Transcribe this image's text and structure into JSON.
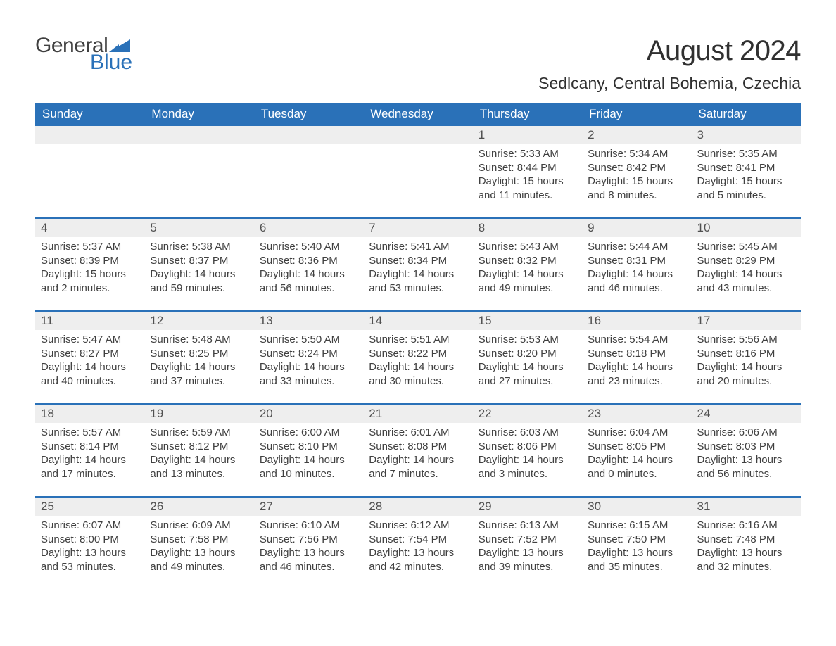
{
  "logo": {
    "text1": "General",
    "text2": "Blue",
    "sail_color": "#2a71b8"
  },
  "title": "August 2024",
  "location": "Sedlcany, Central Bohemia, Czechia",
  "colors": {
    "header_bg": "#2a71b8",
    "header_fg": "#ffffff",
    "daynum_bg": "#eeeeee",
    "week_border": "#2a71b8",
    "text": "#404040",
    "background": "#ffffff"
  },
  "typography": {
    "title_fontsize": 40,
    "location_fontsize": 23,
    "weekday_fontsize": 17,
    "daynum_fontsize": 17,
    "body_fontsize": 15,
    "font_family": "Arial"
  },
  "layout": {
    "columns": 7,
    "rows": 5,
    "first_day_column": 4
  },
  "weekdays": [
    "Sunday",
    "Monday",
    "Tuesday",
    "Wednesday",
    "Thursday",
    "Friday",
    "Saturday"
  ],
  "weeks": [
    [
      {
        "empty": true
      },
      {
        "empty": true
      },
      {
        "empty": true
      },
      {
        "empty": true
      },
      {
        "n": "1",
        "sunrise": "Sunrise: 5:33 AM",
        "sunset": "Sunset: 8:44 PM",
        "daylight": "Daylight: 15 hours and 11 minutes."
      },
      {
        "n": "2",
        "sunrise": "Sunrise: 5:34 AM",
        "sunset": "Sunset: 8:42 PM",
        "daylight": "Daylight: 15 hours and 8 minutes."
      },
      {
        "n": "3",
        "sunrise": "Sunrise: 5:35 AM",
        "sunset": "Sunset: 8:41 PM",
        "daylight": "Daylight: 15 hours and 5 minutes."
      }
    ],
    [
      {
        "n": "4",
        "sunrise": "Sunrise: 5:37 AM",
        "sunset": "Sunset: 8:39 PM",
        "daylight": "Daylight: 15 hours and 2 minutes."
      },
      {
        "n": "5",
        "sunrise": "Sunrise: 5:38 AM",
        "sunset": "Sunset: 8:37 PM",
        "daylight": "Daylight: 14 hours and 59 minutes."
      },
      {
        "n": "6",
        "sunrise": "Sunrise: 5:40 AM",
        "sunset": "Sunset: 8:36 PM",
        "daylight": "Daylight: 14 hours and 56 minutes."
      },
      {
        "n": "7",
        "sunrise": "Sunrise: 5:41 AM",
        "sunset": "Sunset: 8:34 PM",
        "daylight": "Daylight: 14 hours and 53 minutes."
      },
      {
        "n": "8",
        "sunrise": "Sunrise: 5:43 AM",
        "sunset": "Sunset: 8:32 PM",
        "daylight": "Daylight: 14 hours and 49 minutes."
      },
      {
        "n": "9",
        "sunrise": "Sunrise: 5:44 AM",
        "sunset": "Sunset: 8:31 PM",
        "daylight": "Daylight: 14 hours and 46 minutes."
      },
      {
        "n": "10",
        "sunrise": "Sunrise: 5:45 AM",
        "sunset": "Sunset: 8:29 PM",
        "daylight": "Daylight: 14 hours and 43 minutes."
      }
    ],
    [
      {
        "n": "11",
        "sunrise": "Sunrise: 5:47 AM",
        "sunset": "Sunset: 8:27 PM",
        "daylight": "Daylight: 14 hours and 40 minutes."
      },
      {
        "n": "12",
        "sunrise": "Sunrise: 5:48 AM",
        "sunset": "Sunset: 8:25 PM",
        "daylight": "Daylight: 14 hours and 37 minutes."
      },
      {
        "n": "13",
        "sunrise": "Sunrise: 5:50 AM",
        "sunset": "Sunset: 8:24 PM",
        "daylight": "Daylight: 14 hours and 33 minutes."
      },
      {
        "n": "14",
        "sunrise": "Sunrise: 5:51 AM",
        "sunset": "Sunset: 8:22 PM",
        "daylight": "Daylight: 14 hours and 30 minutes."
      },
      {
        "n": "15",
        "sunrise": "Sunrise: 5:53 AM",
        "sunset": "Sunset: 8:20 PM",
        "daylight": "Daylight: 14 hours and 27 minutes."
      },
      {
        "n": "16",
        "sunrise": "Sunrise: 5:54 AM",
        "sunset": "Sunset: 8:18 PM",
        "daylight": "Daylight: 14 hours and 23 minutes."
      },
      {
        "n": "17",
        "sunrise": "Sunrise: 5:56 AM",
        "sunset": "Sunset: 8:16 PM",
        "daylight": "Daylight: 14 hours and 20 minutes."
      }
    ],
    [
      {
        "n": "18",
        "sunrise": "Sunrise: 5:57 AM",
        "sunset": "Sunset: 8:14 PM",
        "daylight": "Daylight: 14 hours and 17 minutes."
      },
      {
        "n": "19",
        "sunrise": "Sunrise: 5:59 AM",
        "sunset": "Sunset: 8:12 PM",
        "daylight": "Daylight: 14 hours and 13 minutes."
      },
      {
        "n": "20",
        "sunrise": "Sunrise: 6:00 AM",
        "sunset": "Sunset: 8:10 PM",
        "daylight": "Daylight: 14 hours and 10 minutes."
      },
      {
        "n": "21",
        "sunrise": "Sunrise: 6:01 AM",
        "sunset": "Sunset: 8:08 PM",
        "daylight": "Daylight: 14 hours and 7 minutes."
      },
      {
        "n": "22",
        "sunrise": "Sunrise: 6:03 AM",
        "sunset": "Sunset: 8:06 PM",
        "daylight": "Daylight: 14 hours and 3 minutes."
      },
      {
        "n": "23",
        "sunrise": "Sunrise: 6:04 AM",
        "sunset": "Sunset: 8:05 PM",
        "daylight": "Daylight: 14 hours and 0 minutes."
      },
      {
        "n": "24",
        "sunrise": "Sunrise: 6:06 AM",
        "sunset": "Sunset: 8:03 PM",
        "daylight": "Daylight: 13 hours and 56 minutes."
      }
    ],
    [
      {
        "n": "25",
        "sunrise": "Sunrise: 6:07 AM",
        "sunset": "Sunset: 8:00 PM",
        "daylight": "Daylight: 13 hours and 53 minutes."
      },
      {
        "n": "26",
        "sunrise": "Sunrise: 6:09 AM",
        "sunset": "Sunset: 7:58 PM",
        "daylight": "Daylight: 13 hours and 49 minutes."
      },
      {
        "n": "27",
        "sunrise": "Sunrise: 6:10 AM",
        "sunset": "Sunset: 7:56 PM",
        "daylight": "Daylight: 13 hours and 46 minutes."
      },
      {
        "n": "28",
        "sunrise": "Sunrise: 6:12 AM",
        "sunset": "Sunset: 7:54 PM",
        "daylight": "Daylight: 13 hours and 42 minutes."
      },
      {
        "n": "29",
        "sunrise": "Sunrise: 6:13 AM",
        "sunset": "Sunset: 7:52 PM",
        "daylight": "Daylight: 13 hours and 39 minutes."
      },
      {
        "n": "30",
        "sunrise": "Sunrise: 6:15 AM",
        "sunset": "Sunset: 7:50 PM",
        "daylight": "Daylight: 13 hours and 35 minutes."
      },
      {
        "n": "31",
        "sunrise": "Sunrise: 6:16 AM",
        "sunset": "Sunset: 7:48 PM",
        "daylight": "Daylight: 13 hours and 32 minutes."
      }
    ]
  ]
}
